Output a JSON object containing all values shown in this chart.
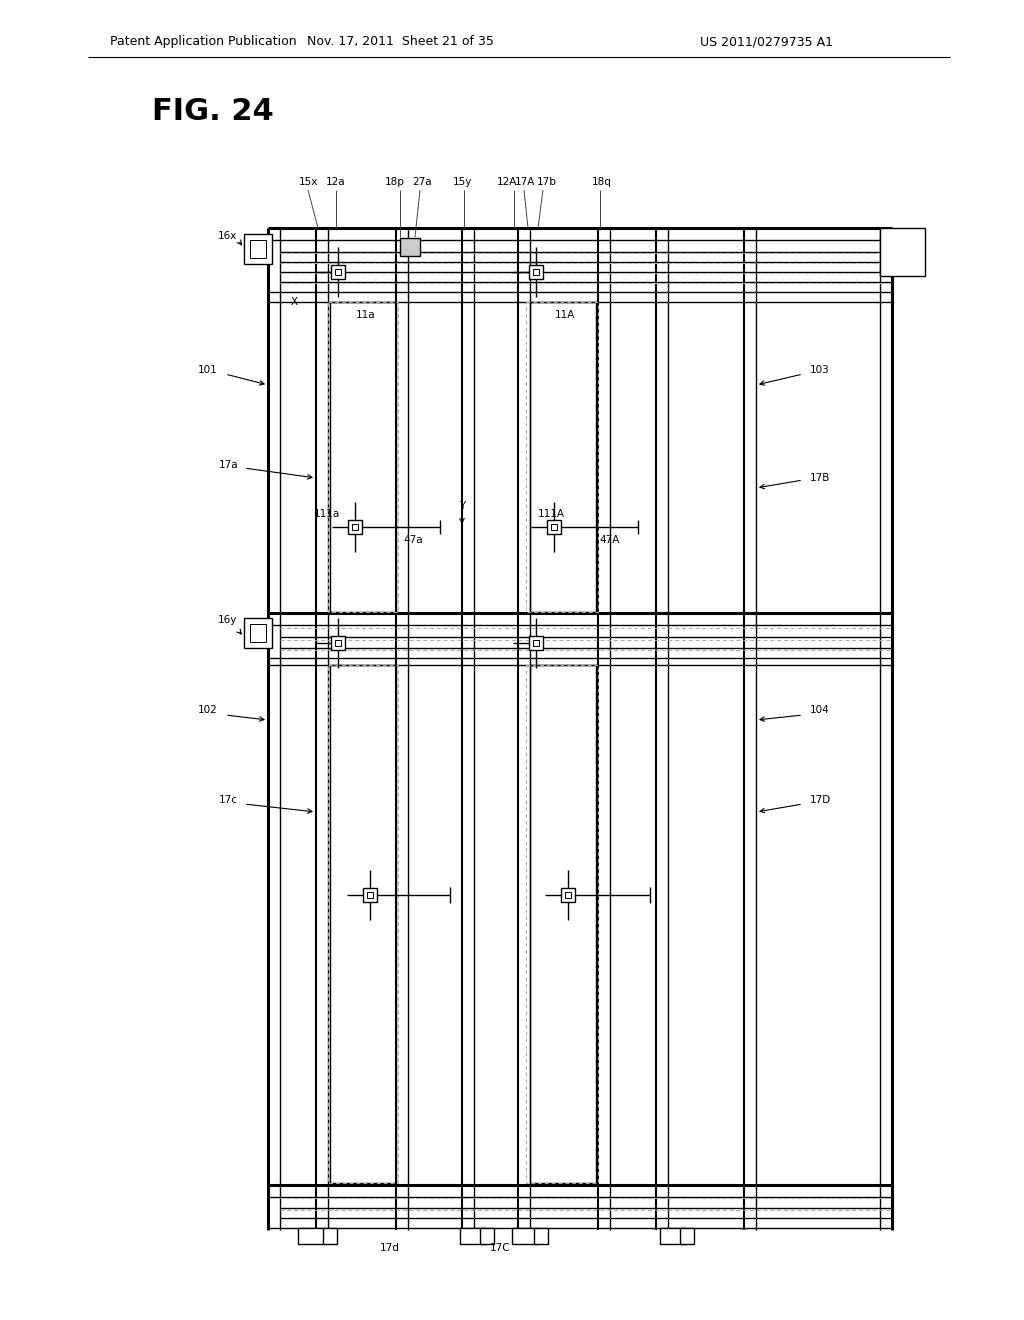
{
  "title": "FIG. 24",
  "header_left": "Patent Application Publication",
  "header_mid": "Nov. 17, 2011  Sheet 21 of 35",
  "header_right": "US 2011/0279735 A1",
  "bg_color": "#ffffff",
  "line_color": "#000000",
  "dashed_color": "#888888"
}
